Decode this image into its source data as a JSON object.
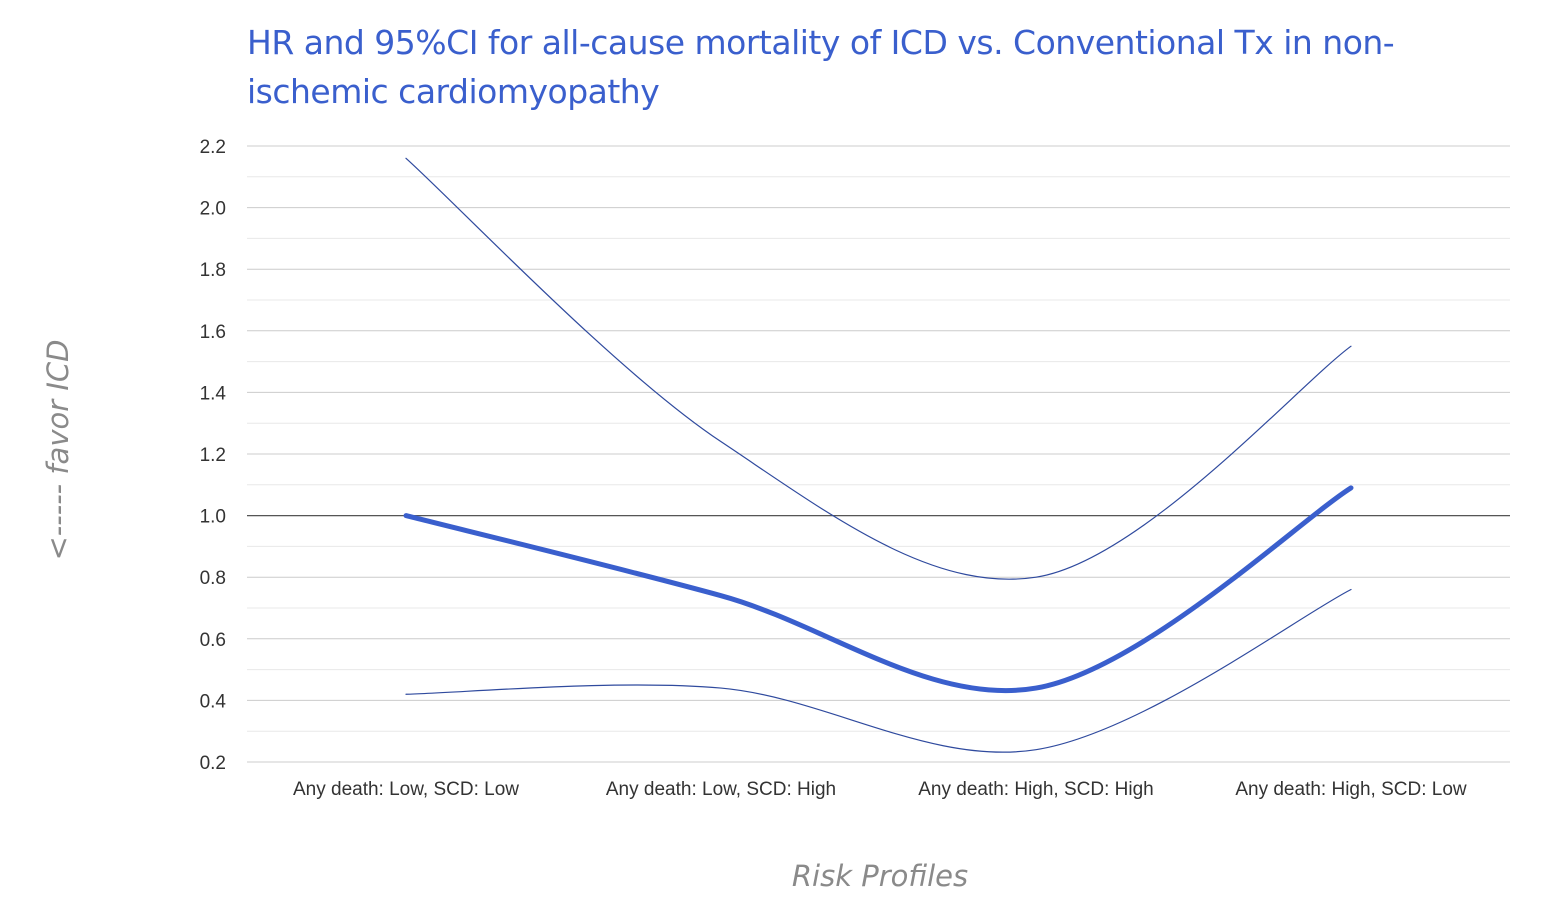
{
  "chart_data": {
    "type": "line",
    "title": "HR and 95%CI for all-cause mortality of ICD vs. Conventional Tx in non-ischemic cardiomyopathy",
    "xlabel": "Risk Profiles",
    "ylabel": "<----- favor ICD",
    "categories": [
      "Any death: Low, SCD: Low",
      "Any death: Low, SCD: High",
      "Any death: High, SCD: High",
      "Any death: High, SCD: Low"
    ],
    "ylim": [
      0.2,
      2.2
    ],
    "yticks": [
      "0.2",
      "0.4",
      "0.6",
      "0.8",
      "1.0",
      "1.2",
      "1.4",
      "1.6",
      "1.8",
      "2.0",
      "2.2"
    ],
    "grid": true,
    "reference_line": 1.0,
    "series": [
      {
        "role": "hr",
        "values": [
          1.0,
          0.74,
          0.44,
          1.09
        ],
        "color": "#3a5fcd"
      },
      {
        "role": "upper",
        "values": [
          2.16,
          1.24,
          0.8,
          1.55
        ],
        "color": "#2f4a9e"
      },
      {
        "role": "lower",
        "values": [
          0.42,
          0.44,
          0.24,
          0.76
        ],
        "color": "#2f4a9e"
      }
    ],
    "colors": {
      "title": "#3a5fcd",
      "major_grid": "#cccccc",
      "minor_grid": "#e8e8e8",
      "reference": "#555555",
      "axis_title": "#8a8a8a"
    }
  }
}
